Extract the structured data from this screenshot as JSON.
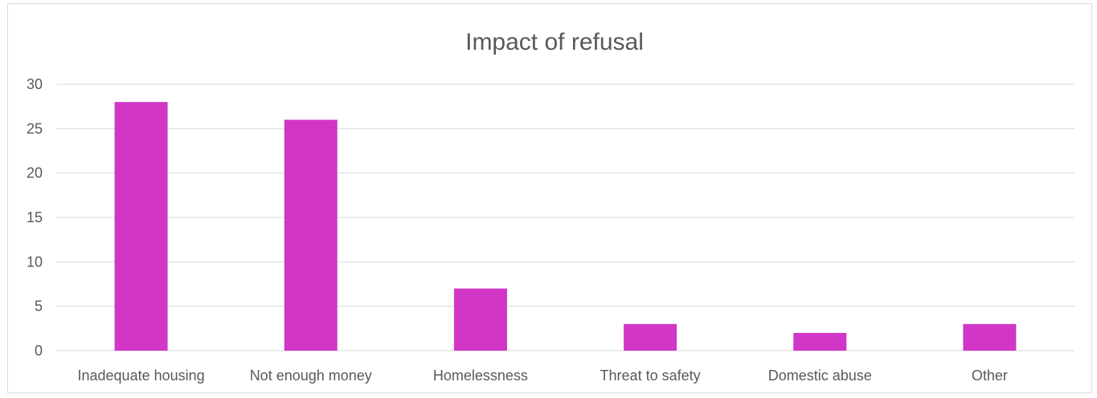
{
  "chart_data": {
    "type": "bar",
    "title": "Impact of refusal",
    "categories": [
      "Inadequate housing",
      "Not enough money",
      "Homelessness",
      "Threat to safety",
      "Domestic abuse",
      "Other"
    ],
    "values": [
      28,
      26,
      7,
      3,
      2,
      3
    ],
    "xlabel": "",
    "ylabel": "",
    "ylim": [
      0,
      30
    ],
    "yticks": [
      0,
      5,
      10,
      15,
      20,
      25,
      30
    ],
    "grid": true,
    "legend": "none",
    "bar_color": "#D136C6"
  }
}
